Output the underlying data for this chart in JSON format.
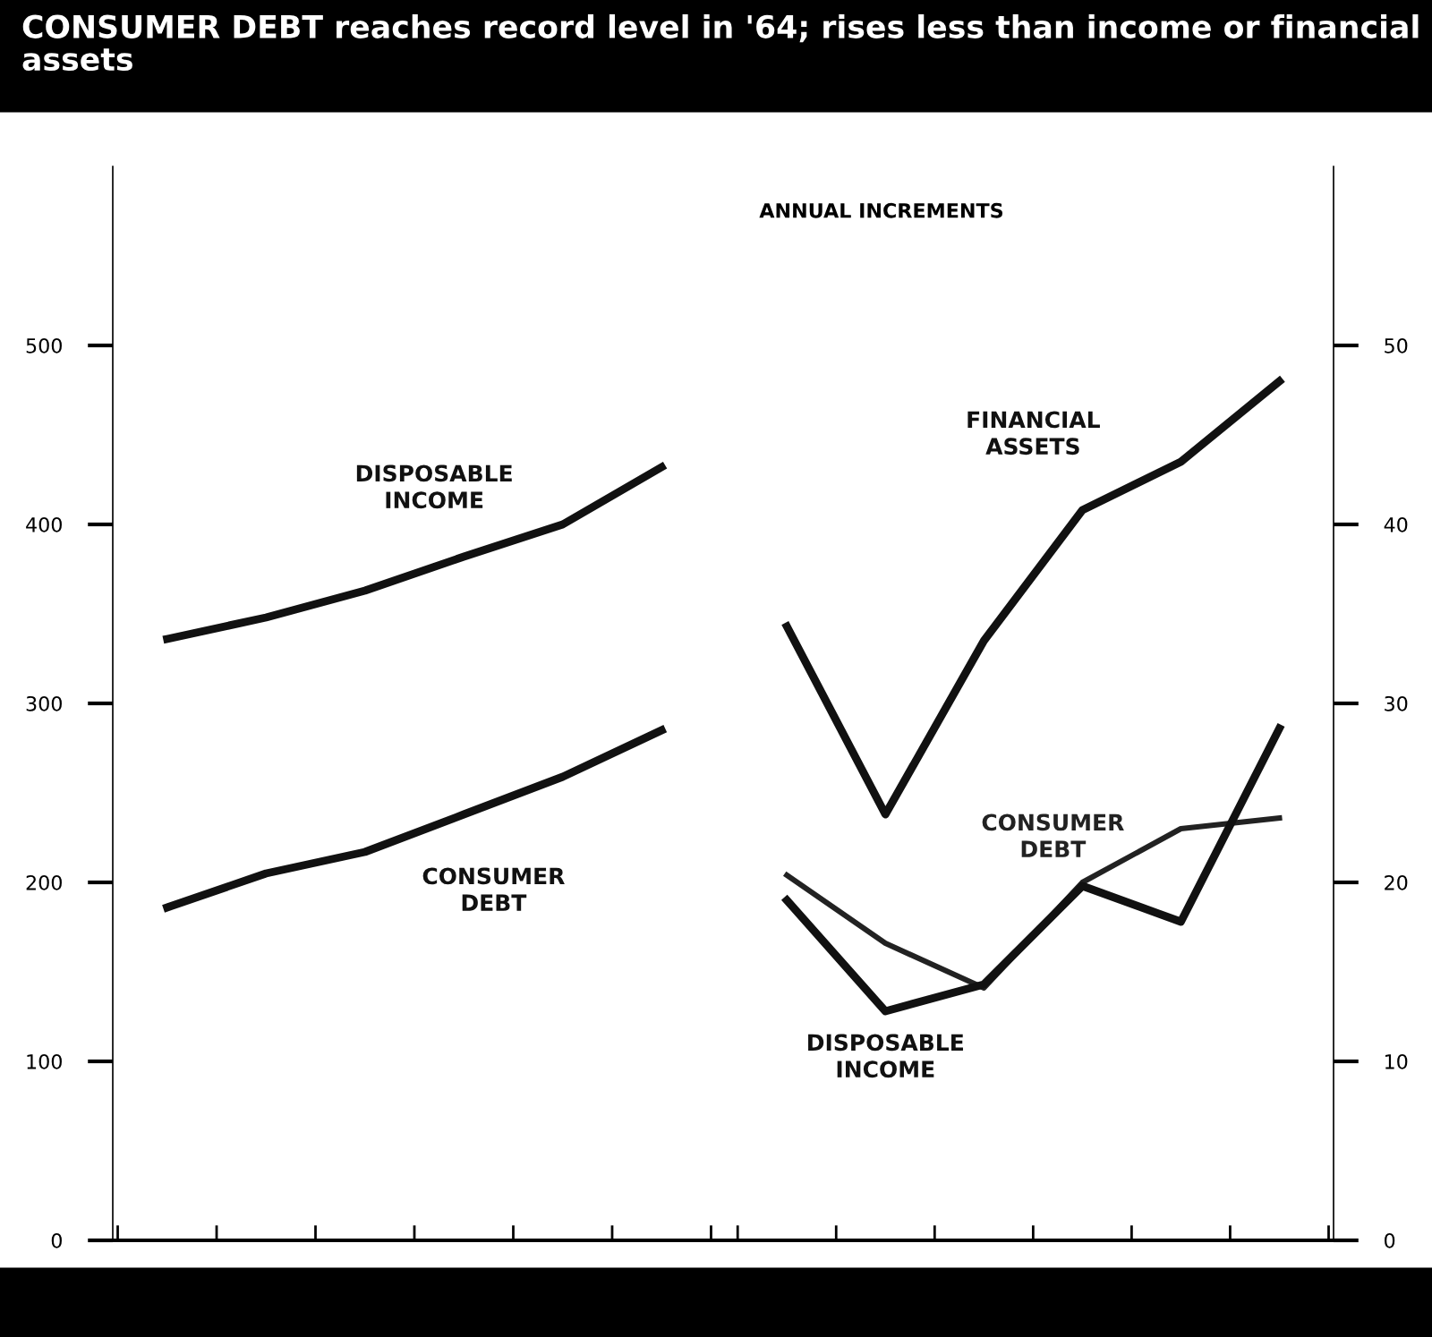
{
  "chart_data": [
    {
      "type": "line",
      "title": "CONSUMER DEBT reaches record level in '64; rises less than income or financial assets",
      "categories": [
        null,
        null,
        null,
        null,
        null,
        null
      ],
      "series": [
        {
          "name": "DISPOSABLE\nINCOME",
          "color": "#111111",
          "values": [
            336,
            348,
            363,
            382,
            400,
            432
          ]
        },
        {
          "name": "CONSUMER\nDEBT",
          "color": "#111111",
          "values": [
            186,
            205,
            217,
            238,
            259,
            285
          ]
        }
      ],
      "ylim": [
        0,
        600
      ],
      "yticks": [
        0,
        100,
        200,
        300,
        400,
        500
      ],
      "grid": false,
      "legend": false,
      "marker": "none",
      "line_style": "solid"
    },
    {
      "type": "line",
      "title": "ANNUAL INCREMENTS",
      "categories": [
        null,
        null,
        null,
        null,
        null,
        null
      ],
      "series": [
        {
          "name": "FINANCIAL\nASSETS",
          "color": "#111111",
          "values": [
            34.3,
            23.8,
            33.5,
            40.8,
            43.5,
            48
          ]
        },
        {
          "name": "CONSUMER\nDEBT",
          "color": "#222222",
          "values": [
            20.4,
            16.6,
            14.1,
            20,
            23,
            23.6
          ]
        },
        {
          "name": "DISPOSABLE\nINCOME",
          "color": "#111111",
          "values": [
            19,
            12.8,
            14.3,
            19.8,
            17.8,
            28.6
          ]
        }
      ],
      "ylim": [
        0,
        60
      ],
      "yticks": [
        0,
        10,
        20,
        30,
        40,
        50
      ],
      "grid": false,
      "legend": false,
      "marker": "none",
      "line_style": "solid"
    }
  ]
}
